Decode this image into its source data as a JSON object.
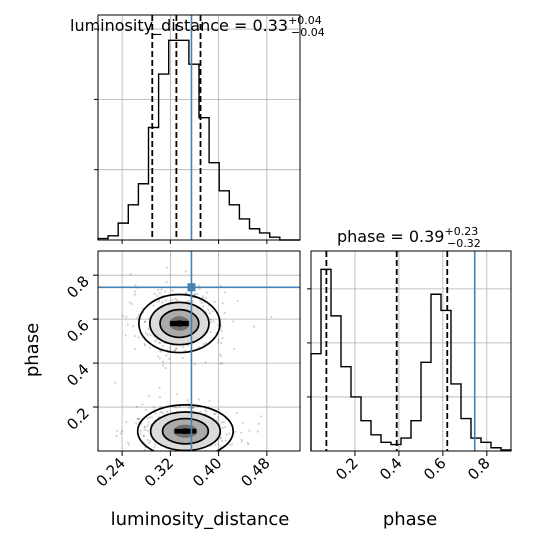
{
  "chart_data": {
    "type": "corner",
    "parameters": [
      "luminosity_distance",
      "phase"
    ],
    "truths": {
      "luminosity_distance": 0.355,
      "phase": 0.745
    },
    "titles": {
      "luminosity_distance": {
        "label": "luminosity_distance",
        "median": "0.33",
        "plus": "+0.04",
        "minus": "−0.04"
      },
      "phase": {
        "label": "phase",
        "median": "0.39",
        "plus": "+0.23",
        "minus": "−0.32"
      }
    },
    "axes": {
      "luminosity_distance": {
        "label": "luminosity_distance",
        "range": [
          0.2,
          0.535
        ],
        "ticks": [
          0.24,
          0.32,
          0.4,
          0.48
        ],
        "tick_labels": [
          "0.24",
          "0.32",
          "0.40",
          "0.48"
        ]
      },
      "phase": {
        "label": "phase",
        "range": [
          0.0,
          0.91
        ],
        "ticks": [
          0.2,
          0.4,
          0.6,
          0.8
        ],
        "tick_labels": [
          "0.2",
          "0.4",
          "0.6",
          "0.8"
        ]
      }
    },
    "hist_luminosity_distance": {
      "bin_start": 0.2,
      "bin_width": 0.01675,
      "counts": [
        1,
        3,
        12,
        25,
        40,
        80,
        118,
        142,
        142,
        125,
        87,
        55,
        35,
        25,
        15,
        8,
        5,
        2,
        0,
        0
      ],
      "quantiles": [
        0.29,
        0.33,
        0.37
      ],
      "ymax": 160,
      "yticks": [
        50,
        100,
        150
      ]
    },
    "hist_phase": {
      "bin_start": 0.0,
      "bin_width": 0.0455,
      "counts": [
        90,
        168,
        125,
        78,
        50,
        28,
        15,
        8,
        6,
        12,
        28,
        82,
        145,
        130,
        62,
        30,
        12,
        8,
        3,
        1
      ],
      "quantiles": [
        0.07,
        0.39,
        0.62
      ],
      "ymax": 185,
      "yticks": [
        50,
        100,
        150
      ]
    },
    "density_clusters": [
      {
        "luminosity_distance": 0.335,
        "phase": 0.58,
        "sd_luminosity_distance": 0.028,
        "sd_phase": 0.055,
        "weight": 0.52
      },
      {
        "luminosity_distance": 0.345,
        "phase": 0.09,
        "sd_luminosity_distance": 0.033,
        "sd_phase": 0.05,
        "weight": 0.48
      }
    ],
    "grid": true
  }
}
